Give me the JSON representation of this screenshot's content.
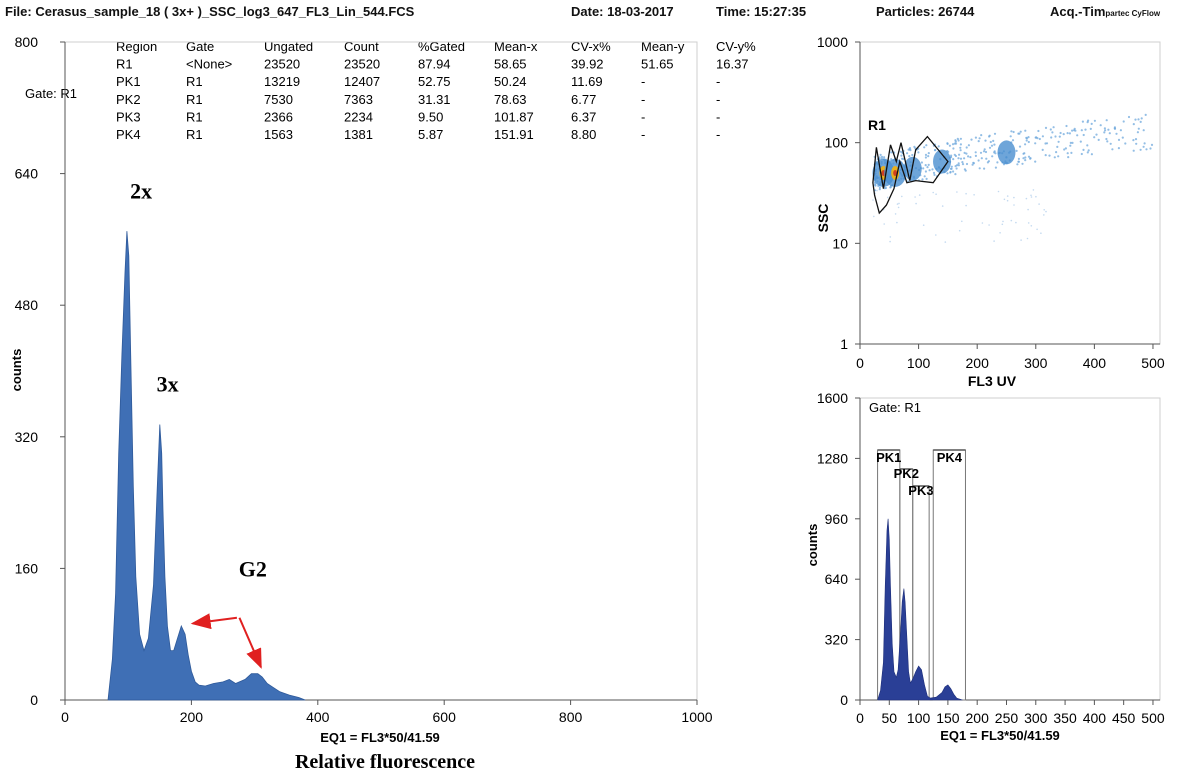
{
  "header": {
    "file": "File: Cerasus_sample_18 ( 3x+ )_SSC_log3_647_FL3_Lin_544.FCS",
    "date": "Date: 18-03-2017",
    "time": "Time: 15:27:35",
    "particles": "Particles: 26744",
    "acq": "Acq.-Tim",
    "brand": "partec CyFlow"
  },
  "stats_table": {
    "columns": [
      "Region",
      "Gate",
      "Ungated",
      "Count",
      "%Gated",
      "Mean-x",
      "CV-x%",
      "Mean-y",
      "CV-y%"
    ],
    "rows": [
      [
        "R1",
        "<None>",
        "23520",
        "23520",
        "87.94",
        "58.65",
        "39.92",
        "51.65",
        "16.37"
      ],
      [
        "PK1",
        "R1",
        "13219",
        "12407",
        "52.75",
        "50.24",
        "11.69",
        "-",
        "-"
      ],
      [
        "PK2",
        "R1",
        "7530",
        "7363",
        "31.31",
        "78.63",
        "6.77",
        "-",
        "-"
      ],
      [
        "PK3",
        "R1",
        "2366",
        "2234",
        "9.50",
        "101.87",
        "6.37",
        "-",
        "-"
      ],
      [
        "PK4",
        "R1",
        "1563",
        "1381",
        "5.87",
        "151.91",
        "8.80",
        "-",
        "-"
      ]
    ]
  },
  "colors": {
    "histogram_fill": "#3f6fb5",
    "small_histogram_fill": "#2a3f96",
    "annotation_red": "#e02020",
    "scatter_points": "#6fa8dc",
    "scatter_core": "#e8b020"
  },
  "chart_data": [
    {
      "type": "area",
      "gate_label": "Gate: R1",
      "ylabel": "counts",
      "eq_label": "EQ1  = FL3*50/41.59",
      "xlabel": "Relative fluorescence",
      "xlim": [
        0,
        1000
      ],
      "ylim": [
        0,
        800
      ],
      "xticks": [
        0,
        200,
        400,
        600,
        800,
        1000
      ],
      "yticks": [
        0,
        160,
        320,
        480,
        640,
        800
      ],
      "x": [
        68,
        75,
        80,
        85,
        90,
        95,
        98,
        101,
        104,
        108,
        112,
        118,
        125,
        132,
        140,
        146,
        150,
        153,
        155,
        158,
        162,
        167,
        172,
        178,
        184,
        190,
        195,
        200,
        206,
        212,
        222,
        235,
        250,
        260,
        270,
        285,
        295,
        305,
        312,
        320,
        330,
        340,
        355,
        370,
        380
      ],
      "values": [
        0,
        50,
        130,
        300,
        420,
        520,
        570,
        540,
        420,
        260,
        150,
        80,
        60,
        75,
        140,
        260,
        335,
        300,
        230,
        150,
        90,
        60,
        60,
        75,
        90,
        80,
        55,
        35,
        22,
        18,
        17,
        20,
        22,
        25,
        20,
        25,
        32,
        32,
        28,
        20,
        15,
        10,
        6,
        3,
        0
      ],
      "annotations": [
        {
          "text": "2x",
          "x": 103,
          "y": 610
        },
        {
          "text": "3x",
          "x": 145,
          "y": 375
        },
        {
          "text": "G2",
          "x": 275,
          "y": 150
        }
      ],
      "arrows": [
        {
          "from": [
            272,
            100
          ],
          "to": [
            202,
            93
          ]
        },
        {
          "from": [
            276,
            100
          ],
          "to": [
            310,
            40
          ]
        }
      ]
    },
    {
      "type": "scatter",
      "xlabel": "FL3  UV",
      "ylabel": "SSC",
      "xlim": [
        0,
        512
      ],
      "ylim": [
        1,
        1000
      ],
      "yscale": "log",
      "xticks": [
        0,
        100,
        200,
        300,
        400,
        500
      ],
      "yticks": [
        1,
        10,
        100,
        1000
      ],
      "region_label": "R1",
      "gate_polygon": [
        [
          22,
          40
        ],
        [
          28,
          90
        ],
        [
          40,
          35
        ],
        [
          52,
          95
        ],
        [
          62,
          65
        ],
        [
          70,
          100
        ],
        [
          85,
          42
        ],
        [
          95,
          85
        ],
        [
          115,
          115
        ],
        [
          150,
          65
        ],
        [
          125,
          40
        ],
        [
          95,
          42
        ],
        [
          80,
          40
        ],
        [
          68,
          65
        ],
        [
          58,
          35
        ],
        [
          45,
          24
        ],
        [
          33,
          20
        ],
        [
          25,
          30
        ]
      ],
      "density_clusters": [
        {
          "x": 40,
          "y": 50
        },
        {
          "x": 60,
          "y": 50
        },
        {
          "x": 90,
          "y": 55
        },
        {
          "x": 140,
          "y": 65
        },
        {
          "x": 250,
          "y": 80
        }
      ]
    },
    {
      "type": "bar",
      "gate_label": "Gate: R1",
      "ylabel": "counts",
      "eq_label": "EQ1  = FL3*50/41.59",
      "xlim": [
        0,
        512
      ],
      "ylim": [
        0,
        1600
      ],
      "xticks": [
        0,
        50,
        100,
        150,
        200,
        250,
        300,
        350,
        400,
        450,
        500
      ],
      "yticks": [
        0,
        320,
        640,
        960,
        1280,
        1600
      ],
      "x": [
        30,
        35,
        40,
        43,
        46,
        48,
        50,
        52,
        55,
        58,
        62,
        65,
        70,
        72,
        75,
        77,
        80,
        83,
        86,
        90,
        95,
        100,
        105,
        110,
        115,
        120,
        130,
        140,
        145,
        150,
        155,
        160,
        165,
        175
      ],
      "values": [
        0,
        50,
        200,
        600,
        900,
        960,
        850,
        600,
        300,
        150,
        120,
        160,
        400,
        520,
        590,
        520,
        330,
        150,
        90,
        110,
        150,
        180,
        160,
        80,
        20,
        10,
        15,
        40,
        70,
        80,
        60,
        30,
        10,
        0
      ],
      "peaks": [
        {
          "label": "PK1",
          "x0": 30,
          "x1": 68
        },
        {
          "label": "PK2",
          "x0": 68,
          "x1": 90
        },
        {
          "label": "PK3",
          "x0": 90,
          "x1": 118
        },
        {
          "label": "PK4",
          "x0": 125,
          "x1": 180
        }
      ]
    }
  ]
}
